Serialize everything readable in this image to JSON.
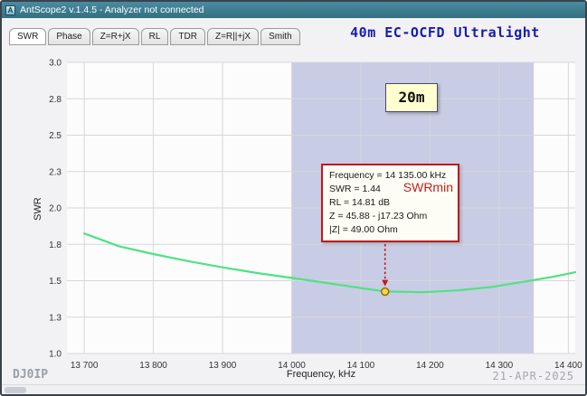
{
  "window": {
    "title": "AntScope2 v.1.4.5 - Analyzer not connected"
  },
  "tabs": [
    {
      "label": "SWR",
      "active": true
    },
    {
      "label": "Phase",
      "active": false
    },
    {
      "label": "Z=R+jX",
      "active": false
    },
    {
      "label": "RL",
      "active": false
    },
    {
      "label": "TDR",
      "active": false
    },
    {
      "label": "Z=R||+jX",
      "active": false
    },
    {
      "label": "Smith",
      "active": false
    }
  ],
  "heading": "40m EC-OCFD Ultralight",
  "chart_data": {
    "type": "line",
    "xlabel": "Frequency, kHz",
    "ylabel": "SWR",
    "x_domain": [
      13675,
      14410
    ],
    "x_ticks": [
      {
        "value": 13700,
        "label": "13 700"
      },
      {
        "value": 13800,
        "label": "13 800"
      },
      {
        "value": 13900,
        "label": "13 900"
      },
      {
        "value": 14000,
        "label": "14 000"
      },
      {
        "value": 14100,
        "label": "14 100"
      },
      {
        "value": 14200,
        "label": "14 200"
      },
      {
        "value": 14300,
        "label": "14 300"
      },
      {
        "value": 14400,
        "label": "14 400"
      }
    ],
    "y_ticks": [
      {
        "value": 3.0,
        "label": "3.0"
      },
      {
        "value": 2.8,
        "label": "2.8"
      },
      {
        "value": 2.5,
        "label": "2.5"
      },
      {
        "value": 2.3,
        "label": "2.3"
      },
      {
        "value": 2.0,
        "label": "2.0"
      },
      {
        "value": 1.8,
        "label": "1.8"
      },
      {
        "value": 1.5,
        "label": "1.5"
      },
      {
        "value": 1.3,
        "label": "1.3"
      },
      {
        "value": 1.0,
        "label": "1.0"
      }
    ],
    "band": {
      "from": 14000,
      "to": 14350,
      "label": "20m"
    },
    "series": [
      {
        "name": "SWR",
        "color": "#4fe283",
        "points": [
          [
            13700,
            1.86
          ],
          [
            13750,
            1.785
          ],
          [
            13800,
            1.72
          ],
          [
            13850,
            1.662
          ],
          [
            13900,
            1.61
          ],
          [
            13950,
            1.563
          ],
          [
            14000,
            1.523
          ],
          [
            14050,
            1.488
          ],
          [
            14100,
            1.46
          ],
          [
            14135,
            1.441
          ],
          [
            14190,
            1.437
          ],
          [
            14240,
            1.447
          ],
          [
            14290,
            1.466
          ],
          [
            14340,
            1.497
          ],
          [
            14380,
            1.535
          ],
          [
            14400,
            1.558
          ],
          [
            14410,
            1.57
          ]
        ]
      }
    ],
    "marker": {
      "frequency_khz": 14135,
      "swr": 1.44
    },
    "annotation": {
      "lines": [
        "Frequency = 14 135.00 kHz",
        "SWR = 1.44",
        "RL = 14.81 dB",
        "Z = 45.88 - j17.23 Ohm",
        "|Z| = 49.00 Ohm"
      ],
      "highlight": "SWRmin"
    },
    "colors": {
      "band": "#c8cce4",
      "plot_bg": "#fcfcfc",
      "grid": "#d7d7db",
      "marker_fill": "#ffd23e",
      "marker_stroke": "#8a6a00",
      "annotation_accent": "#bb1b1b",
      "heading": "#1919b4"
    }
  },
  "footer": {
    "callsign": "DJ0IP",
    "date": "21-APR-2025"
  }
}
